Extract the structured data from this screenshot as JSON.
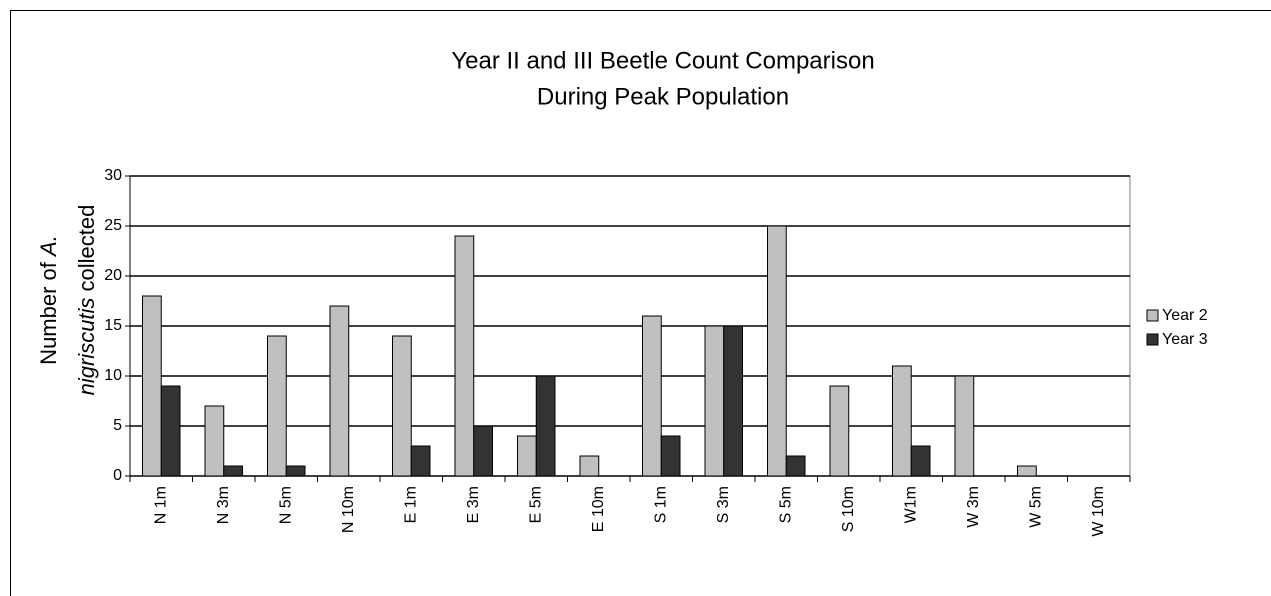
{
  "chart_data": {
    "type": "bar",
    "title": [
      "Year II and III Beetle Count Comparison",
      "During Peak Population"
    ],
    "ylabel": [
      [
        {
          "text": "Number of "
        },
        {
          "text": "A.",
          "italic": true
        }
      ],
      [
        {
          "text": "nigriscutis",
          "italic": true
        },
        {
          "text": " collected"
        }
      ]
    ],
    "categories": [
      "N 1m",
      "N 3m",
      "N 5m",
      "N 10m",
      "E 1m",
      "E 3m",
      "E 5m",
      "E 10m",
      "S 1m",
      "S 3m",
      "S 5m",
      "S 10m",
      "W1m",
      "W 3m",
      "W 5m",
      "W 10m"
    ],
    "series": [
      {
        "name": "Year 2",
        "color": "#c0c0c0",
        "values": [
          18,
          7,
          14,
          17,
          14,
          24,
          4,
          2,
          16,
          15,
          25,
          9,
          11,
          10,
          1,
          0
        ]
      },
      {
        "name": "Year 3",
        "color": "#333333",
        "values": [
          9,
          1,
          1,
          0,
          3,
          5,
          10,
          0,
          4,
          15,
          2,
          0,
          3,
          0,
          0,
          0
        ]
      }
    ],
    "ylim": [
      0,
      30
    ],
    "yticks": [
      0,
      5,
      10,
      15,
      20,
      25,
      30
    ],
    "grid": true,
    "legend": "right"
  }
}
